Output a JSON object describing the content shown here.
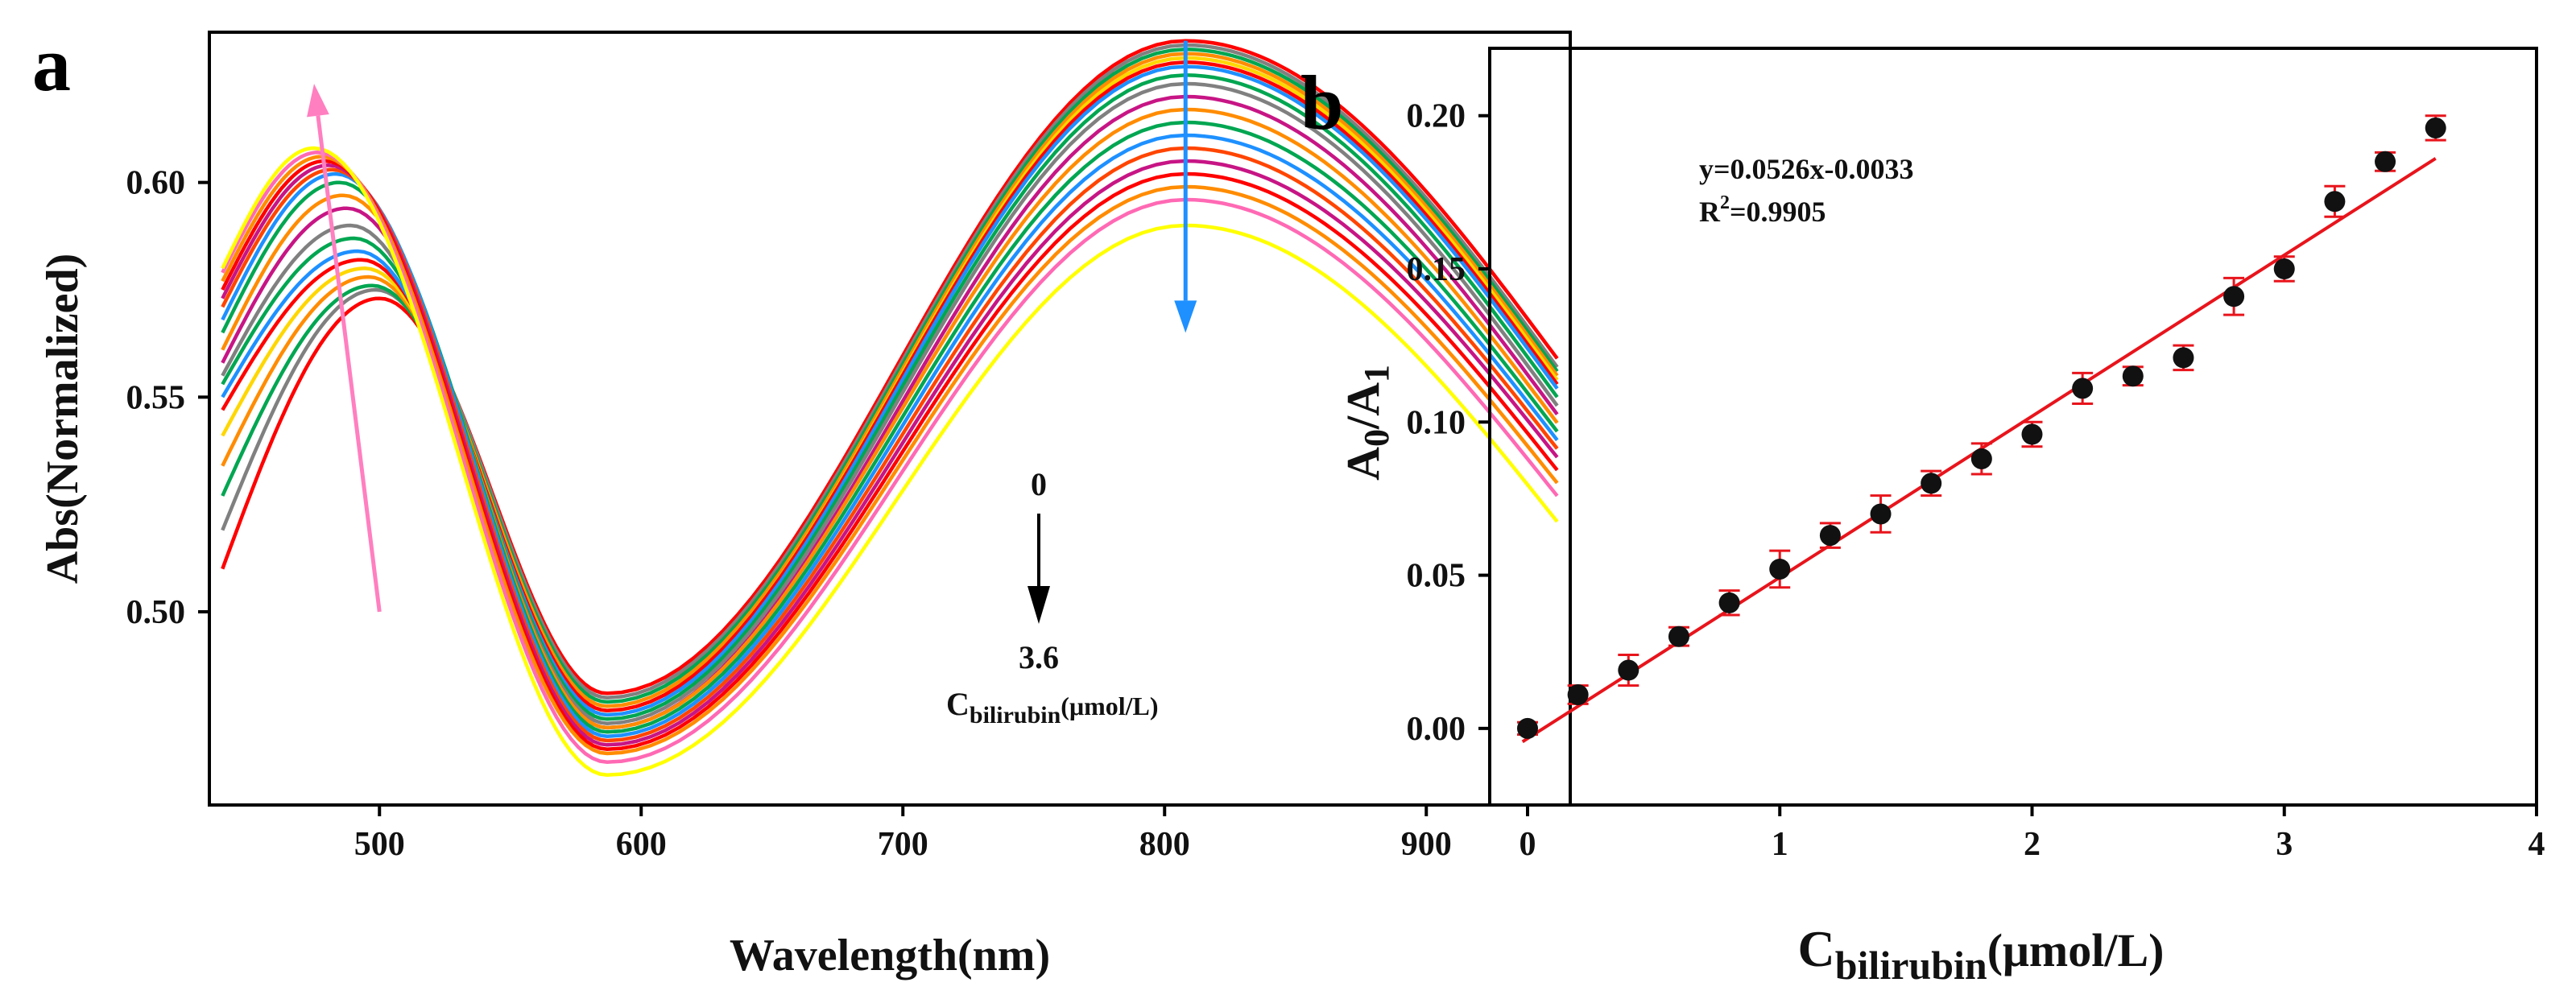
{
  "chart_data": [
    {
      "panel": "a",
      "type": "line",
      "title": "",
      "xlabel": "Wavelength(nm)",
      "ylabel": "Abs(Normalized)",
      "xlim": [
        435,
        955
      ],
      "ylim": [
        0.455,
        0.635
      ],
      "xticks": [
        500,
        600,
        700,
        800,
        900
      ],
      "yticks": [
        0.5,
        0.55,
        0.6
      ],
      "grid": false,
      "series_count": 19,
      "concentration_start": "0",
      "concentration_end": "3.6",
      "concentration_label_main": "C",
      "concentration_label_sub": "bilirubin",
      "concentration_label_unit": "(μmol/L)",
      "peak1_wavelength_range": [
        475,
        500
      ],
      "peak2_wavelength": 808,
      "series": [
        {
          "name": "0.0",
          "color": "#ff0000",
          "y_start": 0.51,
          "y_peak1": 0.573,
          "y_valley": 0.481,
          "y_peak2": 0.633,
          "y_end": 0.559
        },
        {
          "name": "0.2",
          "color": "#808080",
          "y_start": 0.519,
          "y_peak1": 0.575,
          "y_valley": 0.48,
          "y_peak2": 0.632,
          "y_end": 0.557
        },
        {
          "name": "0.4",
          "color": "#00a651",
          "y_start": 0.527,
          "y_peak1": 0.576,
          "y_valley": 0.479,
          "y_peak2": 0.631,
          "y_end": 0.556
        },
        {
          "name": "0.6",
          "color": "#ff8c00",
          "y_start": 0.534,
          "y_peak1": 0.578,
          "y_valley": 0.478,
          "y_peak2": 0.63,
          "y_end": 0.555
        },
        {
          "name": "0.8",
          "color": "#ffd700",
          "y_start": 0.541,
          "y_peak1": 0.58,
          "y_valley": 0.477,
          "y_peak2": 0.629,
          "y_end": 0.554
        },
        {
          "name": "1.0",
          "color": "#ff0000",
          "y_start": 0.547,
          "y_peak1": 0.582,
          "y_valley": 0.477,
          "y_peak2": 0.628,
          "y_end": 0.553
        },
        {
          "name": "1.2",
          "color": "#1e90ff",
          "y_start": 0.55,
          "y_peak1": 0.584,
          "y_valley": 0.476,
          "y_peak2": 0.627,
          "y_end": 0.552
        },
        {
          "name": "1.4",
          "color": "#00a651",
          "y_start": 0.553,
          "y_peak1": 0.587,
          "y_valley": 0.475,
          "y_peak2": 0.625,
          "y_end": 0.55
        },
        {
          "name": "1.6",
          "color": "#808080",
          "y_start": 0.555,
          "y_peak1": 0.59,
          "y_valley": 0.474,
          "y_peak2": 0.623,
          "y_end": 0.548
        },
        {
          "name": "1.8",
          "color": "#c71585",
          "y_start": 0.558,
          "y_peak1": 0.594,
          "y_valley": 0.473,
          "y_peak2": 0.62,
          "y_end": 0.546
        },
        {
          "name": "2.0",
          "color": "#ff8c00",
          "y_start": 0.561,
          "y_peak1": 0.597,
          "y_valley": 0.473,
          "y_peak2": 0.617,
          "y_end": 0.544
        },
        {
          "name": "2.2",
          "color": "#00a651",
          "y_start": 0.565,
          "y_peak1": 0.6,
          "y_valley": 0.472,
          "y_peak2": 0.614,
          "y_end": 0.542
        },
        {
          "name": "2.4",
          "color": "#1e90ff",
          "y_start": 0.568,
          "y_peak1": 0.602,
          "y_valley": 0.471,
          "y_peak2": 0.611,
          "y_end": 0.54
        },
        {
          "name": "2.6",
          "color": "#ff4500",
          "y_start": 0.571,
          "y_peak1": 0.603,
          "y_valley": 0.47,
          "y_peak2": 0.608,
          "y_end": 0.538
        },
        {
          "name": "2.8",
          "color": "#c71585",
          "y_start": 0.573,
          "y_peak1": 0.604,
          "y_valley": 0.469,
          "y_peak2": 0.605,
          "y_end": 0.536
        },
        {
          "name": "3.0",
          "color": "#ff0000",
          "y_start": 0.575,
          "y_peak1": 0.605,
          "y_valley": 0.468,
          "y_peak2": 0.602,
          "y_end": 0.533
        },
        {
          "name": "3.2",
          "color": "#ff8c00",
          "y_start": 0.577,
          "y_peak1": 0.606,
          "y_valley": 0.467,
          "y_peak2": 0.599,
          "y_end": 0.53
        },
        {
          "name": "3.4",
          "color": "#ff69b4",
          "y_start": 0.579,
          "y_peak1": 0.607,
          "y_valley": 0.465,
          "y_peak2": 0.596,
          "y_end": 0.527
        },
        {
          "name": "3.6",
          "color": "#ffff00",
          "y_start": 0.58,
          "y_peak1": 0.608,
          "y_valley": 0.462,
          "y_peak2": 0.59,
          "y_end": 0.521
        }
      ],
      "arrows": [
        {
          "name": "peak1-trend",
          "color": "#ff7fc0",
          "from": [
            500,
            0.5
          ],
          "to": [
            475,
            0.623
          ]
        },
        {
          "name": "peak2-trend",
          "color": "#1e90ff",
          "from": [
            808,
            0.633
          ],
          "to": [
            808,
            0.565
          ]
        }
      ]
    },
    {
      "panel": "b",
      "type": "scatter",
      "title": "",
      "xlabel_main": "C",
      "xlabel_sub": "bilirubin",
      "xlabel_unit": "(μmol/L)",
      "ylabel_main": "A",
      "ylabel_sub0": "0",
      "ylabel_mid": "/A",
      "ylabel_sub1": "1",
      "xlim": [
        -0.15,
        4.0
      ],
      "ylim": [
        -0.025,
        0.222
      ],
      "xticks": [
        0,
        1,
        2,
        3,
        4
      ],
      "yticks": [
        "0.00",
        "0.05",
        "0.10",
        "0.15",
        "0.20"
      ],
      "grid": false,
      "x": [
        0,
        0.2,
        0.4,
        0.6,
        0.8,
        1.0,
        1.2,
        1.4,
        1.6,
        1.8,
        2.0,
        2.2,
        2.4,
        2.6,
        2.8,
        3.0,
        3.2,
        3.4,
        3.6
      ],
      "y": [
        0.0,
        0.011,
        0.019,
        0.03,
        0.041,
        0.052,
        0.063,
        0.07,
        0.08,
        0.088,
        0.096,
        0.111,
        0.115,
        0.121,
        0.141,
        0.15,
        0.172,
        0.185,
        0.196
      ],
      "yerr": [
        0.002,
        0.003,
        0.005,
        0.003,
        0.004,
        0.006,
        0.004,
        0.006,
        0.004,
        0.005,
        0.004,
        0.005,
        0.003,
        0.004,
        0.006,
        0.004,
        0.005,
        0.003,
        0.004
      ],
      "fit_slope": 0.0526,
      "fit_intercept": -0.0033,
      "fit_range": [
        0,
        3.6
      ],
      "fit_color": "#e8141c",
      "errorbar_color": "#e8141c",
      "marker_color": "#111111",
      "equation_text": "y=0.0526x-0.0033",
      "r2_prefix": "R",
      "r2_sup": "2",
      "r2_value": "=0.9905"
    }
  ],
  "panel_labels": {
    "a": "a",
    "b": "b"
  }
}
